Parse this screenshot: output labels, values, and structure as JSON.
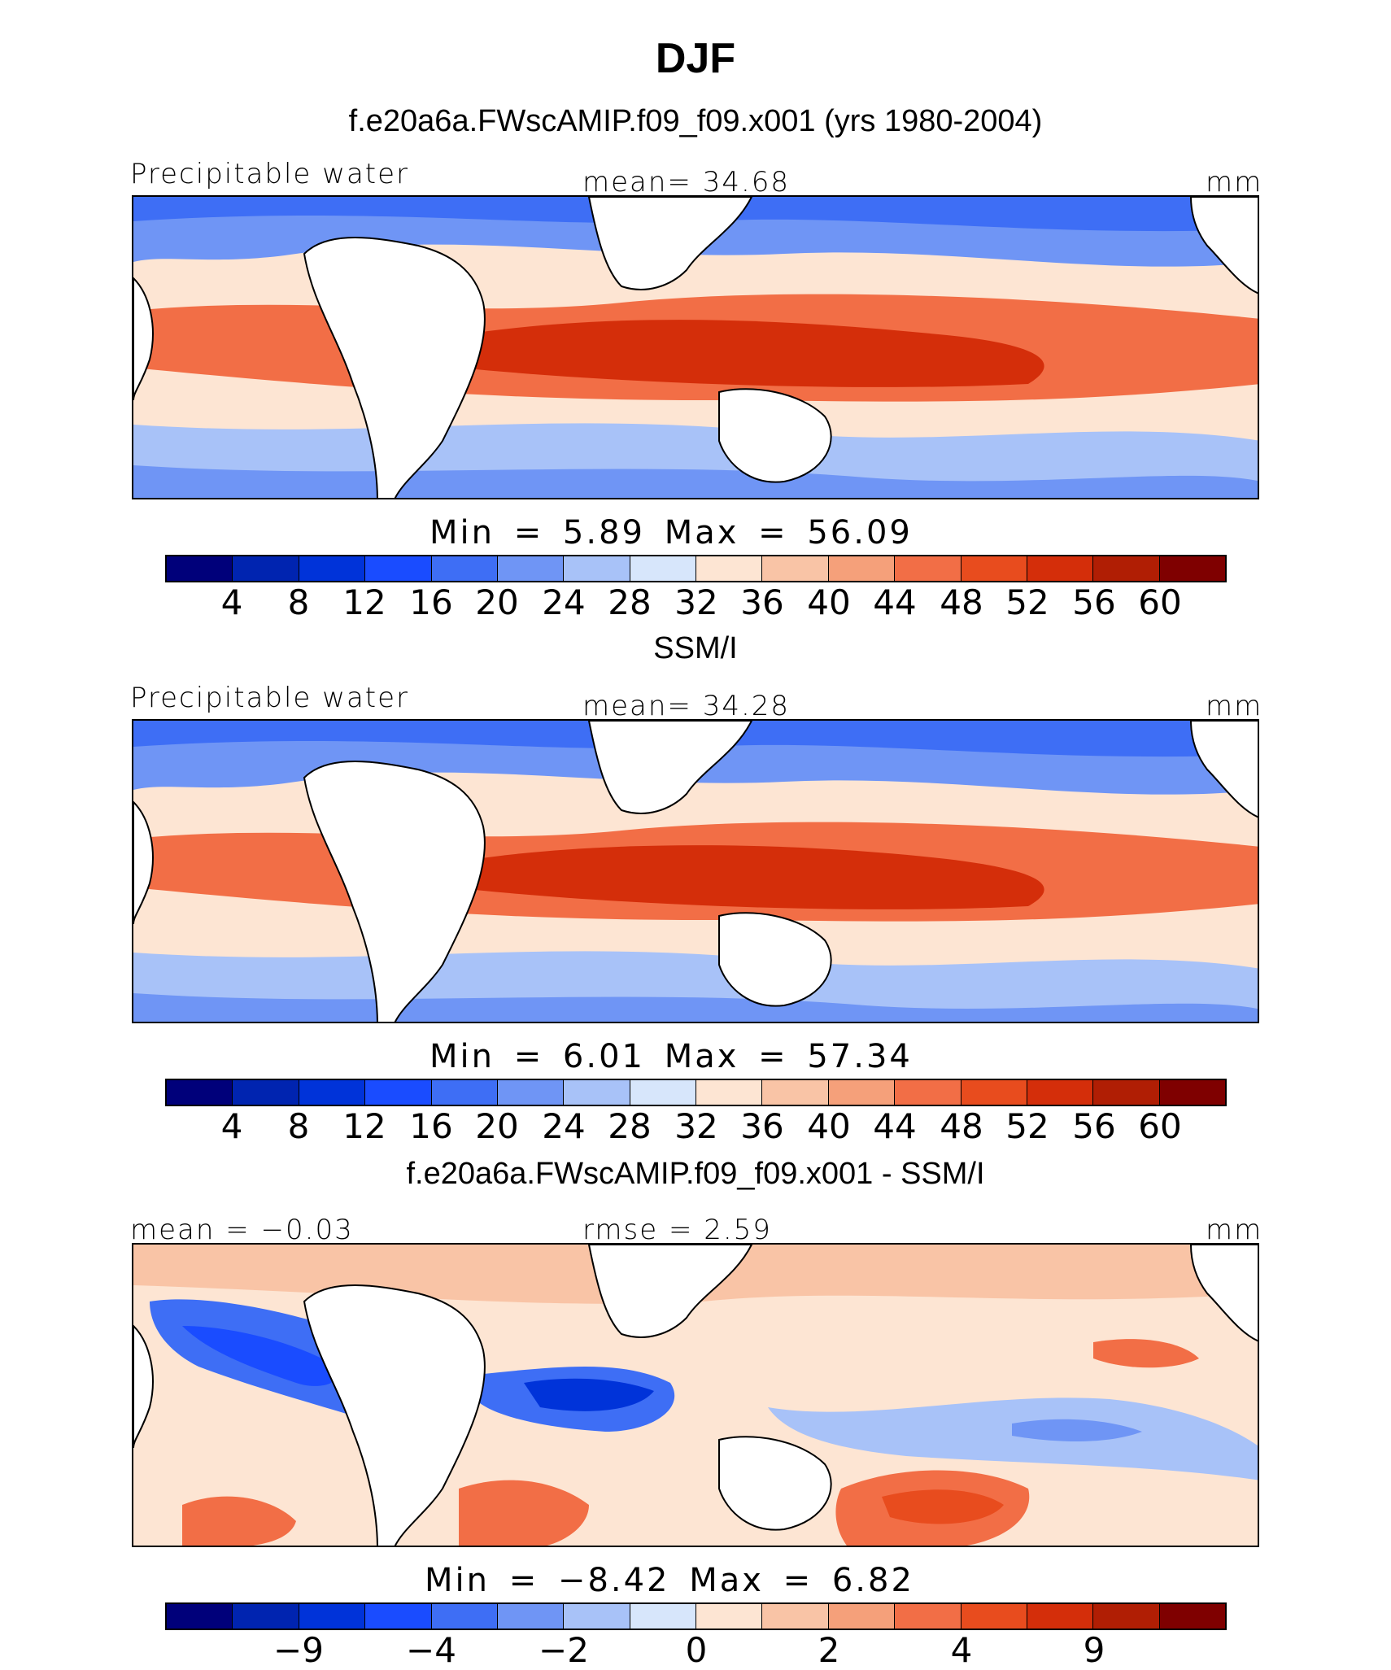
{
  "title": "DJF",
  "colors": {
    "pw_scale": [
      "#00007a",
      "#0024b0",
      "#0033d9",
      "#1a4cff",
      "#3e6ef5",
      "#6f95f5",
      "#a8c2f8",
      "#d7e6fb",
      "#fde5d3",
      "#f9c4a6",
      "#f5a07a",
      "#f26e46",
      "#e84c1e",
      "#d42e0a",
      "#b01e04",
      "#7f0000"
    ],
    "diff_scale": [
      "#00007a",
      "#0024b0",
      "#0033d9",
      "#1a4cff",
      "#3e6ef5",
      "#6f95f5",
      "#a8c2f8",
      "#d7e6fb",
      "#fde5d3",
      "#f9c4a6",
      "#f5a07a",
      "#f26e46",
      "#e84c1e",
      "#d42e0a",
      "#b01e04",
      "#7f0000"
    ]
  },
  "panels": [
    {
      "title": "f.e20a6a.FWscAMIP.f09_f09.x001 (yrs 1980-2004)",
      "left_label": "Precipitable water",
      "center_label": "mean=   34.68",
      "right_label": "mm",
      "minmax": "Min =    5.89  Max =   56.09",
      "colorbar_ticks": [
        "4",
        "8",
        "12",
        "16",
        "20",
        "24",
        "28",
        "32",
        "36",
        "40",
        "44",
        "48",
        "52",
        "56",
        "60"
      ]
    },
    {
      "title": "SSM/I",
      "left_label": "Precipitable water",
      "center_label": "mean=   34.28",
      "right_label": "mm",
      "minmax": "Min =    6.01  Max =   57.34",
      "colorbar_ticks": [
        "4",
        "8",
        "12",
        "16",
        "20",
        "24",
        "28",
        "32",
        "36",
        "40",
        "44",
        "48",
        "52",
        "56",
        "60"
      ]
    },
    {
      "title": "f.e20a6a.FWscAMIP.f09_f09.x001 - SSM/I",
      "left_label": "mean =  −0.03",
      "center_label": "rmse =    2.59",
      "right_label": "mm",
      "minmax": "Min =   −8.42  Max =    6.82",
      "colorbar_ticks": [
        "−9",
        "−4",
        "−2",
        "0",
        "2",
        "4",
        "9"
      ]
    }
  ]
}
